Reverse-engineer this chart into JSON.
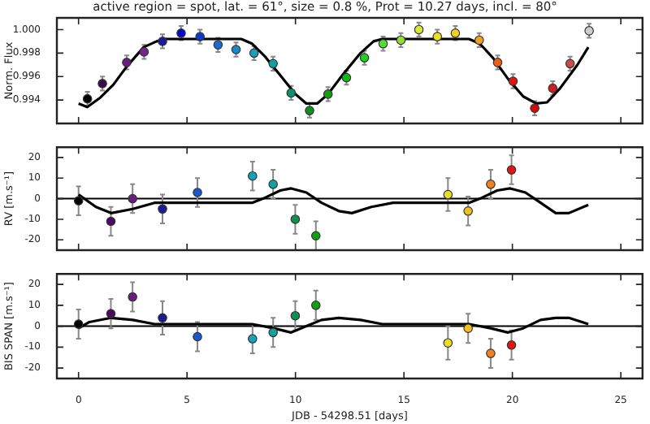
{
  "chart_data": [
    {
      "type": "scatter",
      "title": "active region = spot, lat. = 61°, size = 0.8 %, Prot = 10.27 days, incl. = 80°",
      "ylabel": "Norm. Flux",
      "xlim": [
        -1,
        26
      ],
      "xticks": [
        0,
        5,
        10,
        15,
        20,
        25
      ],
      "ylim": [
        0.992,
        1.001
      ],
      "yticks": [
        0.994,
        0.996,
        0.998,
        {
          "value": 1,
          "label": "1.000"
        }
      ],
      "tick_labels": "y",
      "series": [
        {
          "marker": "circle",
          "x": [
            0.41,
            1.1,
            2.22,
            3.02,
            3.87,
            4.73,
            5.6,
            6.43,
            7.26,
            8.09,
            8.97,
            9.8,
            10.65,
            11.5,
            12.35,
            13.18,
            14.04,
            14.86,
            15.69,
            16.54,
            17.37,
            18.47,
            19.32,
            20.03,
            21.03,
            21.86,
            22.66,
            23.54
          ],
          "values": [
            0.9941,
            0.9954,
            0.9972,
            0.9981,
            0.999,
            0.9997,
            0.9994,
            0.9987,
            0.9983,
            0.998,
            0.9971,
            0.9946,
            0.9931,
            0.9945,
            0.9959,
            0.9976,
            0.9988,
            0.9991,
            1.0,
            0.9994,
            0.9997,
            0.9991,
            0.9972,
            0.9956,
            0.9933,
            0.995,
            0.9971,
            0.9999
          ],
          "errors": [
            0.0006,
            0.0006,
            0.0006,
            0.0006,
            0.0006,
            0.0006,
            0.0006,
            0.0006,
            0.0006,
            0.0006,
            0.0006,
            0.0006,
            0.0006,
            0.0006,
            0.0006,
            0.0006,
            0.0006,
            0.0006,
            0.0006,
            0.0006,
            0.0006,
            0.0006,
            0.0006,
            0.0006,
            0.0006,
            0.0006,
            0.0006,
            0.0006
          ],
          "colors": [
            "#000000",
            "#3a0a4a",
            "#6a1a80",
            "#7a2090",
            "#1a1a9a",
            "#0a0acc",
            "#0a3ad0",
            "#1a6ad0",
            "#1a88c8",
            "#18a0b8",
            "#10a0a0",
            "#109070",
            "#109020",
            "#10a010",
            "#10b810",
            "#20d020",
            "#50e030",
            "#90e030",
            "#d8e830",
            "#e8e020",
            "#f0d020",
            "#f0a020",
            "#f06010",
            "#e81010",
            "#d80a0a",
            "#cc2020",
            "#cc4a4a",
            "#cccccc"
          ]
        },
        {
          "type": "line",
          "color": "#000000",
          "x": [
            0,
            0.4,
            1,
            1.6,
            2.2,
            3,
            3.6,
            4,
            7.5,
            8,
            8.6,
            9.3,
            10,
            10.5,
            11,
            11.5,
            12.2,
            13,
            13.6,
            14,
            18,
            18.5,
            19.1,
            19.8,
            20.5,
            21.1,
            21.6,
            22.2,
            23,
            23.5
          ],
          "values": [
            0.9937,
            0.9934,
            0.9942,
            0.9953,
            0.9968,
            0.9985,
            0.999,
            0.9992,
            0.9992,
            0.9988,
            0.9977,
            0.9961,
            0.9945,
            0.9937,
            0.9937,
            0.9945,
            0.9962,
            0.998,
            0.999,
            0.9992,
            0.9992,
            0.9988,
            0.9976,
            0.9958,
            0.9943,
            0.9937,
            0.9938,
            0.995,
            0.997,
            0.9985
          ]
        }
      ]
    },
    {
      "type": "scatter",
      "ylabel": "RV [m.s⁻¹]",
      "xlim": [
        -1,
        26
      ],
      "xticks": [
        0,
        5,
        10,
        15,
        20,
        25
      ],
      "ylim": [
        -25,
        25
      ],
      "yticks": [
        -20,
        -10,
        0,
        10,
        20
      ],
      "tick_labels": "y",
      "ref_lines": [
        {
          "axis": "y",
          "value": 0,
          "color": "#000000"
        }
      ],
      "series": [
        {
          "marker": "circle",
          "x": [
            0,
            1.49,
            2.49,
            3.87,
            5.48,
            8.02,
            8.97,
            9.99,
            10.94,
            17.03,
            17.96,
            19.0,
            19.96
          ],
          "values": [
            -1,
            -11,
            0,
            -5,
            3,
            11,
            7,
            -10,
            -18,
            2,
            -6,
            7,
            14
          ],
          "errors": [
            7,
            7,
            7,
            7,
            7,
            7,
            7,
            7,
            7,
            8,
            7,
            7,
            7
          ],
          "colors": [
            "#000000",
            "#4a0a60",
            "#6a1a80",
            "#1a1a9a",
            "#1a58d0",
            "#18a0b8",
            "#10a0a0",
            "#109050",
            "#10a010",
            "#e8e020",
            "#f0c020",
            "#f08020",
            "#e81010"
          ]
        },
        {
          "type": "line",
          "color": "#000000",
          "x": [
            0,
            0.8,
            1.5,
            2.5,
            3.5,
            4.5,
            8,
            8.5,
            9.3,
            9.8,
            10.5,
            11.2,
            12,
            12.6,
            13.5,
            14.5,
            15,
            18,
            18.5,
            19.3,
            19.9,
            20.6,
            21.3,
            22,
            22.6,
            23.5
          ],
          "values": [
            2,
            -4,
            -7,
            -5,
            -2,
            -2,
            -2,
            0,
            4,
            5,
            3,
            -2,
            -6,
            -7,
            -4,
            -2,
            -2,
            -2,
            0,
            4,
            5,
            3,
            -2,
            -7,
            -7,
            -3
          ]
        }
      ]
    },
    {
      "type": "scatter",
      "xlabel": "JDB - 54298.51 [days]",
      "ylabel": "BIS SPAN [m.s⁻¹]",
      "xlim": [
        -1,
        26
      ],
      "xticks": [
        0,
        5,
        10,
        15,
        20,
        25
      ],
      "ylim": [
        -25,
        25
      ],
      "yticks": [
        -20,
        -10,
        0,
        10,
        20
      ],
      "ref_lines": [
        {
          "axis": "y",
          "value": 0,
          "color": "#000000"
        }
      ],
      "series": [
        {
          "marker": "circle",
          "x": [
            0,
            1.49,
            2.49,
            3.87,
            5.48,
            8.02,
            8.97,
            9.99,
            10.94,
            17.03,
            17.96,
            19.0,
            19.96
          ],
          "values": [
            1,
            6,
            14,
            4,
            -5,
            -6,
            -3,
            5,
            10,
            -8,
            -1,
            -13,
            -9
          ],
          "errors": [
            7,
            7,
            7,
            8,
            7,
            7,
            7,
            7,
            7,
            8,
            7,
            7,
            7
          ],
          "colors": [
            "#000000",
            "#4a0a60",
            "#6a1a80",
            "#1a1a9a",
            "#1a58d0",
            "#18a0b8",
            "#10a0a0",
            "#109050",
            "#10a010",
            "#e8e020",
            "#f0c020",
            "#f08020",
            "#e81010"
          ]
        },
        {
          "type": "line",
          "color": "#000000",
          "x": [
            0,
            0.5,
            1.5,
            2.5,
            3.5,
            4.5,
            8,
            9,
            9.8,
            10.5,
            11.2,
            12,
            13,
            14,
            15,
            18,
            19,
            19.8,
            20.5,
            21.3,
            22,
            22.6,
            23.5
          ],
          "values": [
            -1,
            2,
            4,
            3,
            1,
            1,
            1,
            -1,
            -3,
            0,
            3,
            4,
            3,
            1,
            1,
            1,
            -1,
            -3,
            -1,
            3,
            4,
            4,
            1
          ]
        }
      ]
    }
  ]
}
